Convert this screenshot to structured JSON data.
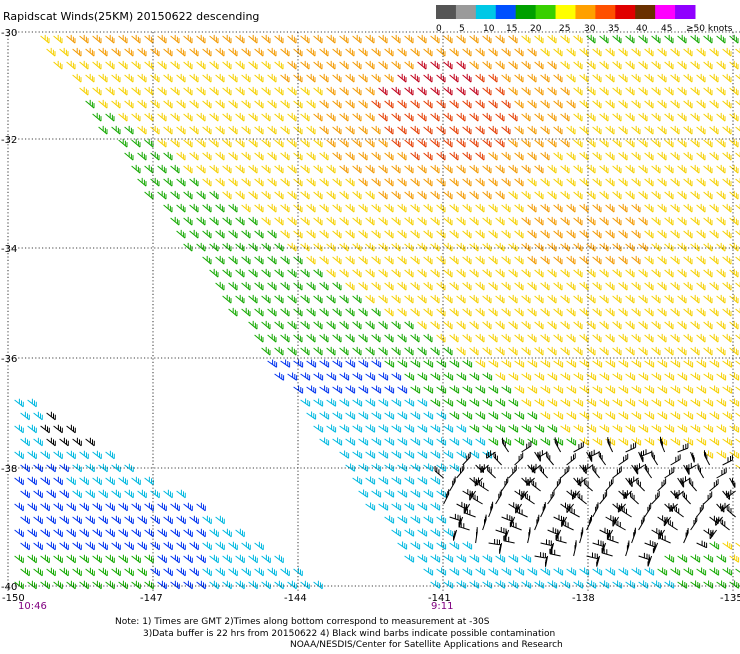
{
  "title": "Rapidscat Winds(25KM) 20150622 descending",
  "colorbar": {
    "labels": [
      "0",
      "5",
      "10",
      "15",
      "20",
      "25",
      "30",
      "35",
      "40",
      "45",
      "≥50 knots"
    ],
    "colors": [
      "#555555",
      "#9a9a9a",
      "#00c8e6",
      "#0050ff",
      "#00a000",
      "#38d000",
      "#ffff00",
      "#ffa000",
      "#ff5000",
      "#e00000",
      "#6a3000",
      "#ff00ff",
      "#9000ff"
    ]
  },
  "map": {
    "lat_labels": [
      "-30",
      "-32",
      "-34",
      "-36",
      "-38",
      "-40"
    ],
    "lon_labels": [
      "-150",
      "-147",
      "-144",
      "-141",
      "-138",
      "-135"
    ],
    "lon_range": [
      -150,
      -135
    ],
    "lat_range": [
      -40,
      -30
    ],
    "start_time": "10:46",
    "end_time": "9:11",
    "time_color": "#800080"
  },
  "notes": [
    "Note: 1) Times are GMT 2)Times along bottom correspond to measurement at -30S",
    "3)Data buffer is 22 hrs from 20150622 4) Black wind barbs indicate possible contamination",
    "NOAA/NESDIS/Center for Satellite Applications and Research"
  ],
  "barb_colors": {
    "yellow": "#f6d000",
    "orange": "#f39a00",
    "red": "#e53d00",
    "darkred": "#c0001a",
    "green": "#14a800",
    "blue": "#0033ee",
    "cyan": "#00b8e0",
    "black": "#000000"
  }
}
